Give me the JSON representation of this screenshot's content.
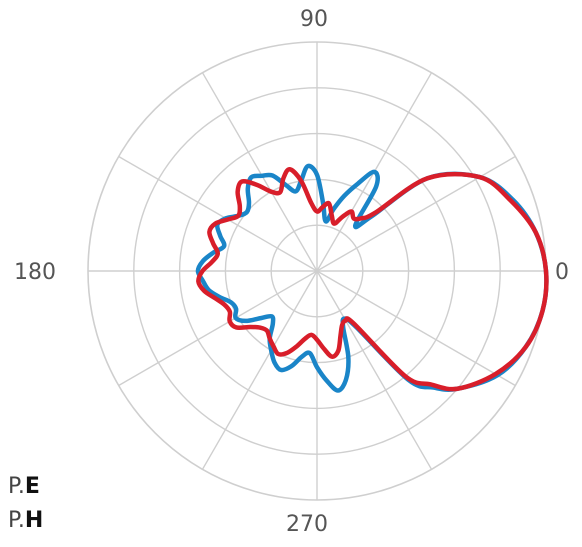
{
  "chart_data": {
    "type": "line",
    "subtype": "polar",
    "angle_labels": [
      "0",
      "90",
      "180",
      "270"
    ],
    "angular_grid_step_deg": 30,
    "radial_rings": 5,
    "grid": true,
    "colors": {
      "grid": "#cfcfcf",
      "P.E": "#1a85c8",
      "P.H": "#d81e2a"
    },
    "series": [
      {
        "name": "P.E",
        "theta": [
          0,
          10,
          20,
          30,
          40,
          45,
          50,
          55,
          60,
          65,
          70,
          75,
          80,
          85,
          90,
          95,
          100,
          105,
          110,
          115,
          120,
          125,
          130,
          135,
          140,
          145,
          150,
          155,
          160,
          165,
          170,
          175,
          180,
          185,
          190,
          195,
          200,
          205,
          210,
          215,
          220,
          225,
          230,
          235,
          240,
          245,
          250,
          255,
          260,
          265,
          270,
          275,
          280,
          285,
          290,
          295,
          300,
          305,
          310,
          315,
          320,
          330,
          340,
          350
        ],
        "r": [
          1.0,
          0.97,
          0.91,
          0.82,
          0.63,
          0.34,
          0.26,
          0.45,
          0.5,
          0.42,
          0.35,
          0.28,
          0.22,
          0.3,
          0.42,
          0.46,
          0.4,
          0.36,
          0.4,
          0.46,
          0.48,
          0.5,
          0.47,
          0.42,
          0.4,
          0.42,
          0.46,
          0.48,
          0.45,
          0.42,
          0.46,
          0.5,
          0.52,
          0.5,
          0.48,
          0.44,
          0.4,
          0.39,
          0.41,
          0.38,
          0.32,
          0.28,
          0.3,
          0.36,
          0.4,
          0.44,
          0.46,
          0.43,
          0.38,
          0.36,
          0.42,
          0.48,
          0.53,
          0.49,
          0.4,
          0.27,
          0.24,
          0.3,
          0.62,
          0.72,
          0.8,
          0.91,
          0.97,
          1.0
        ]
      },
      {
        "name": "P.H",
        "theta": [
          0,
          10,
          20,
          30,
          40,
          45,
          50,
          55,
          60,
          65,
          70,
          75,
          80,
          85,
          90,
          95,
          100,
          105,
          110,
          115,
          120,
          125,
          130,
          135,
          140,
          145,
          150,
          155,
          160,
          165,
          170,
          175,
          180,
          185,
          190,
          195,
          200,
          205,
          210,
          215,
          220,
          225,
          230,
          235,
          240,
          245,
          250,
          255,
          260,
          265,
          270,
          275,
          280,
          285,
          290,
          295,
          300,
          305,
          310,
          315,
          320,
          330,
          340,
          350
        ],
        "r": [
          1.0,
          0.97,
          0.9,
          0.82,
          0.63,
          0.36,
          0.3,
          0.28,
          0.3,
          0.26,
          0.22,
          0.25,
          0.3,
          0.28,
          0.26,
          0.3,
          0.4,
          0.46,
          0.43,
          0.38,
          0.4,
          0.46,
          0.51,
          0.49,
          0.44,
          0.42,
          0.45,
          0.49,
          0.5,
          0.47,
          0.44,
          0.46,
          0.5,
          0.52,
          0.5,
          0.46,
          0.43,
          0.42,
          0.44,
          0.43,
          0.38,
          0.35,
          0.34,
          0.36,
          0.38,
          0.4,
          0.38,
          0.34,
          0.3,
          0.28,
          0.3,
          0.34,
          0.38,
          0.36,
          0.3,
          0.26,
          0.25,
          0.28,
          0.6,
          0.7,
          0.8,
          0.9,
          0.97,
          1.0
        ]
      }
    ]
  },
  "legend": [
    {
      "prefix": "P.",
      "letter": "E"
    },
    {
      "prefix": "P.",
      "letter": "H"
    }
  ]
}
